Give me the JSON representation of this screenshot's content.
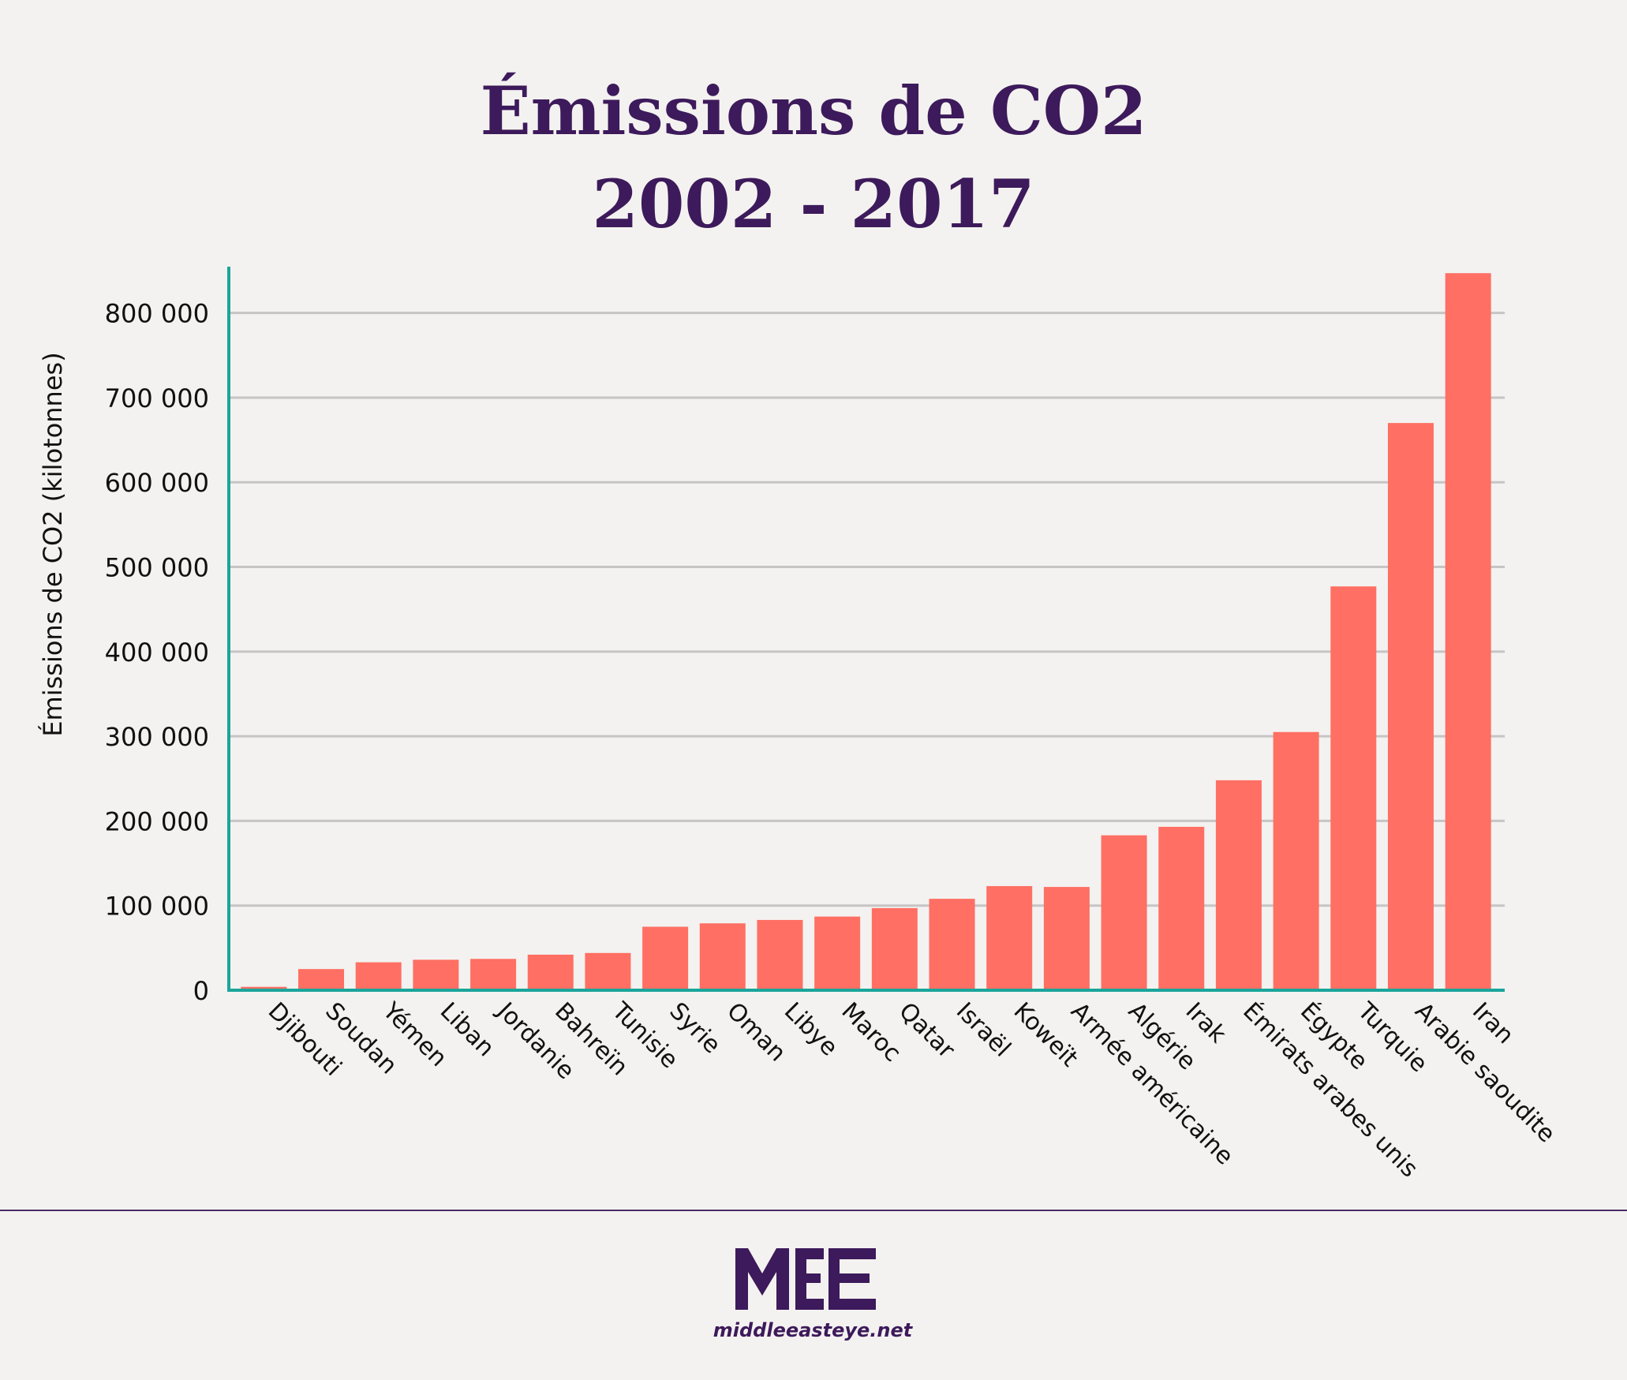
{
  "title": {
    "line1": "Émissions de CO2",
    "line2": "2002 - 2017"
  },
  "footer": {
    "logo_text": "MEE",
    "site": "middleeasteye.net"
  },
  "colors": {
    "bar": "#ff6f63",
    "axis": "#1aa59b",
    "grid": "#c6c4c4",
    "title": "#3d1a5b",
    "text": "#111111"
  },
  "chart_data": {
    "type": "bar",
    "title": "Émissions de CO2 2002 - 2017",
    "xlabel": "",
    "ylabel": "Émissions de CO2 (kilotonnes)",
    "ylim": [
      0,
      850000
    ],
    "yticks": [
      0,
      100000,
      200000,
      300000,
      400000,
      500000,
      600000,
      700000,
      800000
    ],
    "ytick_labels": [
      "0",
      "100 000",
      "200 000",
      "300 000",
      "400 000",
      "500 000",
      "600 000",
      "700 000",
      "800 000"
    ],
    "grid": true,
    "legend": "none",
    "categories": [
      "Djibouti",
      "Soudan",
      "Yémen",
      "Liban",
      "Jordanie",
      "Bahreïn",
      "Tunisie",
      "Syrie",
      "Oman",
      "Libye",
      "Maroc",
      "Qatar",
      "Israël",
      "Koweït",
      "Armée américaine",
      "Algérie",
      "Irak",
      "Émirats arabes unis",
      "Égypte",
      "Turquie",
      "Arabie saoudite",
      "Iran"
    ],
    "values": [
      4000,
      25000,
      33000,
      36000,
      37000,
      42000,
      44000,
      75000,
      79000,
      83000,
      87000,
      97000,
      108000,
      123000,
      122000,
      183000,
      193000,
      248000,
      305000,
      477000,
      670000,
      847000
    ]
  }
}
